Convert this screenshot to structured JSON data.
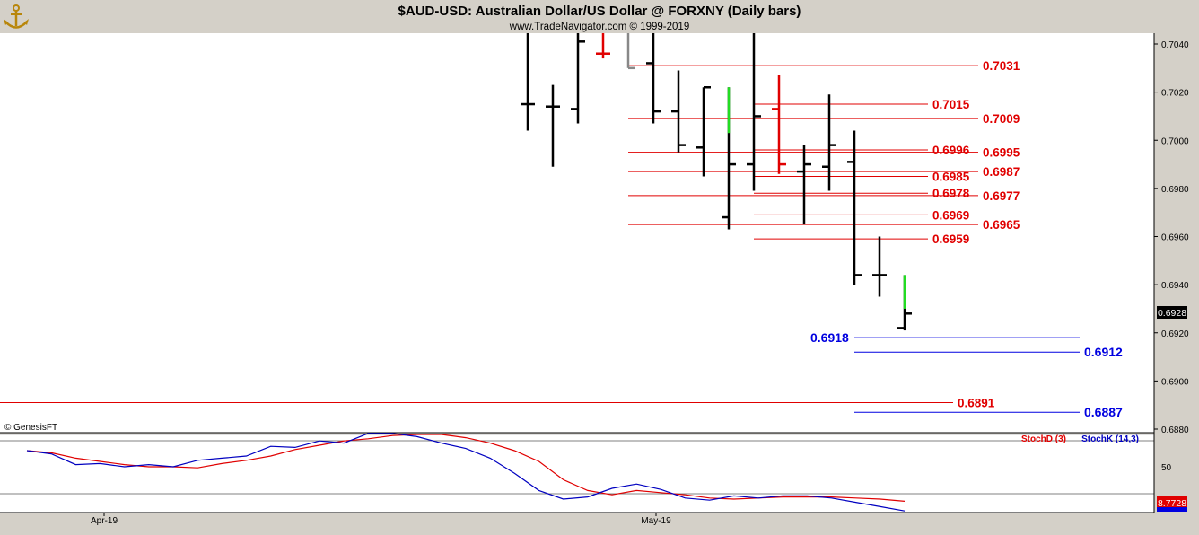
{
  "header": {
    "title": "$AUD-USD:  Australian Dollar/US Dollar @ FORXNY  (Daily bars)",
    "subtitle": "www.TradeNavigator.com © 1999-2019",
    "logo_icon": "anchor-logo-icon"
  },
  "price_panel": {
    "copyright": "© GenesisFT",
    "y_axis_ticks": [
      "0.7040",
      "0.7020",
      "0.7000",
      "0.6980",
      "0.6960",
      "0.6940",
      "0.6920",
      "0.6900",
      "0.6880"
    ],
    "last_price": "0.6928",
    "levels": [
      {
        "label": "0.7031",
        "value": 0.7031,
        "color": "#e00000"
      },
      {
        "label": "0.7015",
        "value": 0.7015,
        "color": "#e00000"
      },
      {
        "label": "0.7009",
        "value": 0.7009,
        "color": "#e00000"
      },
      {
        "label": "0.6996",
        "value": 0.6996,
        "color": "#e00000"
      },
      {
        "label": "0.6995",
        "value": 0.6995,
        "color": "#e00000"
      },
      {
        "label": "0.6987",
        "value": 0.6987,
        "color": "#e00000"
      },
      {
        "label": "0.6985",
        "value": 0.6985,
        "color": "#e00000"
      },
      {
        "label": "0.6978",
        "value": 0.6978,
        "color": "#e00000"
      },
      {
        "label": "0.6977",
        "value": 0.6977,
        "color": "#e00000"
      },
      {
        "label": "0.6969",
        "value": 0.6969,
        "color": "#e00000"
      },
      {
        "label": "0.6965",
        "value": 0.6965,
        "color": "#e00000"
      },
      {
        "label": "0.6959",
        "value": 0.6959,
        "color": "#e00000"
      },
      {
        "label": "0.6918",
        "value": 0.6918,
        "color": "#0000e0"
      },
      {
        "label": "0.6912",
        "value": 0.6912,
        "color": "#0000e0"
      },
      {
        "label": "0.6891",
        "value": 0.6891,
        "color": "#e00000"
      },
      {
        "label": "0.6887",
        "value": 0.6887,
        "color": "#0000e0"
      }
    ]
  },
  "stoch_panel": {
    "stochd_label": "StochD (3)",
    "stochk_label": "StochK (14,3)",
    "axis_label": "50",
    "last_value": "8.7728"
  },
  "x_axis": {
    "labels": [
      "Apr-19",
      "May-19"
    ]
  },
  "chart_data": {
    "type": "ohlc",
    "title": "$AUD-USD:  Australian Dollar/US Dollar @ FORXNY  (Daily bars)",
    "ylim": [
      0.6875,
      0.7045
    ],
    "bars": [
      {
        "open": 0.7015,
        "high": 0.7045,
        "low": 0.7004,
        "close": 0.7015,
        "color": "#000000"
      },
      {
        "open": 0.7014,
        "high": 0.7023,
        "low": 0.6989,
        "close": 0.7014,
        "color": "#000000"
      },
      {
        "open": 0.7013,
        "high": 0.7045,
        "low": 0.7007,
        "close": 0.7041,
        "color": "#000000"
      },
      {
        "open": 0.7036,
        "high": 0.7045,
        "low": 0.7034,
        "close": 0.7036,
        "color": "#e00000"
      },
      {
        "open": 0.7045,
        "high": 0.7045,
        "low": 0.703,
        "close": 0.703,
        "color": "#888888"
      },
      {
        "open": 0.7032,
        "high": 0.7045,
        "low": 0.7007,
        "close": 0.7012,
        "color": "#000000"
      },
      {
        "open": 0.7012,
        "high": 0.7029,
        "low": 0.6995,
        "close": 0.6998,
        "color": "#000000"
      },
      {
        "open": 0.6997,
        "high": 0.7022,
        "low": 0.6985,
        "close": 0.7022,
        "color": "#000000"
      },
      {
        "open": 0.6968,
        "high": 0.7022,
        "low": 0.6963,
        "close": 0.699,
        "color": "#000000"
      },
      {
        "open": 0.699,
        "high": 0.7045,
        "low": 0.6979,
        "close": 0.701,
        "color": "#000000"
      },
      {
        "open": 0.7013,
        "high": 0.7027,
        "low": 0.6986,
        "close": 0.699,
        "color": "#e00000"
      },
      {
        "open": 0.6987,
        "high": 0.6998,
        "low": 0.6965,
        "close": 0.699,
        "color": "#000000"
      },
      {
        "open": 0.6989,
        "high": 0.7019,
        "low": 0.6979,
        "close": 0.6998,
        "color": "#000000"
      },
      {
        "open": 0.6991,
        "high": 0.7004,
        "low": 0.694,
        "close": 0.6944,
        "color": "#000000"
      },
      {
        "open": 0.6944,
        "high": 0.696,
        "low": 0.6935,
        "close": 0.6944,
        "color": "#000000"
      },
      {
        "open": 0.6922,
        "high": 0.6944,
        "low": 0.6921,
        "close": 0.6928,
        "color": "#000000"
      }
    ],
    "stochastic": {
      "stochD": [
        65,
        63,
        58,
        55,
        52,
        50,
        50,
        49,
        53,
        56,
        60,
        66,
        70,
        74,
        76,
        79,
        80,
        80,
        77,
        72,
        65,
        55,
        38,
        28,
        24,
        28,
        26,
        24,
        21,
        20,
        21,
        22,
        22,
        22,
        21,
        20,
        18
      ],
      "stochK": [
        65,
        62,
        52,
        53,
        50,
        52,
        50,
        56,
        58,
        60,
        69,
        68,
        74,
        72,
        81,
        81,
        78,
        72,
        67,
        58,
        44,
        28,
        20,
        22,
        30,
        34,
        29,
        21,
        19,
        23,
        21,
        23,
        23,
        21,
        17,
        13,
        9
      ]
    }
  }
}
